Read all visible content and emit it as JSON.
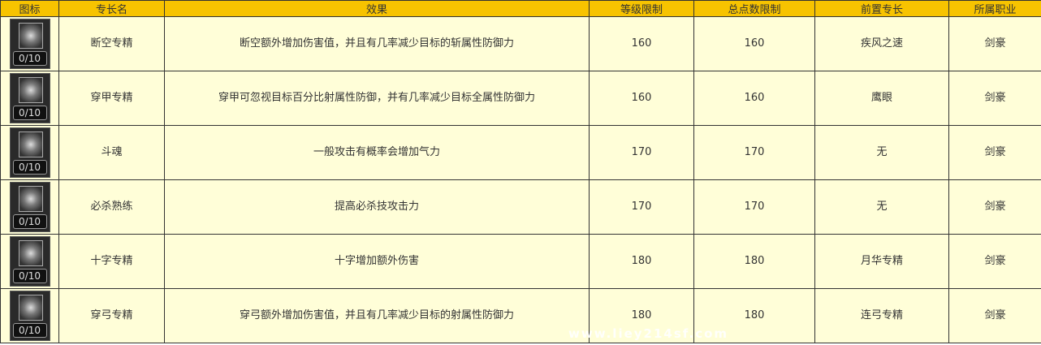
{
  "headers": [
    "图标",
    "专长名",
    "效果",
    "等级限制",
    "总点数限制",
    "前置专长",
    "所属职业"
  ],
  "rows": [
    {
      "level": "0/10",
      "name": "断空专精",
      "effect": "断空额外增加伤害值，并且有几率减少目标的斩属性防御力",
      "lvl_req": "160",
      "pts_req": "160",
      "prereq": "疾风之速",
      "job": "剑豪"
    },
    {
      "level": "0/10",
      "name": "穿甲专精",
      "effect": "穿甲可忽视目标百分比射属性防御，并有几率减少目标全属性防御力",
      "lvl_req": "160",
      "pts_req": "160",
      "prereq": "鹰眼",
      "job": "剑豪"
    },
    {
      "level": "0/10",
      "name": "斗魂",
      "effect": "一般攻击有概率会增加气力",
      "lvl_req": "170",
      "pts_req": "170",
      "prereq": "无",
      "job": "剑豪"
    },
    {
      "level": "0/10",
      "name": "必杀熟练",
      "effect": "提高必杀技攻击力",
      "lvl_req": "170",
      "pts_req": "170",
      "prereq": "无",
      "job": "剑豪"
    },
    {
      "level": "0/10",
      "name": "十字专精",
      "effect": "十字增加额外伤害",
      "lvl_req": "180",
      "pts_req": "180",
      "prereq": "月华专精",
      "job": "剑豪"
    },
    {
      "level": "0/10",
      "name": "穿弓专精",
      "effect": "穿弓额外增加伤害值，并且有几率减少目标的射属性防御力",
      "lvl_req": "180",
      "pts_req": "180",
      "prereq": "连弓专精",
      "job": "剑豪"
    }
  ],
  "watermark": "www.liey214sf.com"
}
